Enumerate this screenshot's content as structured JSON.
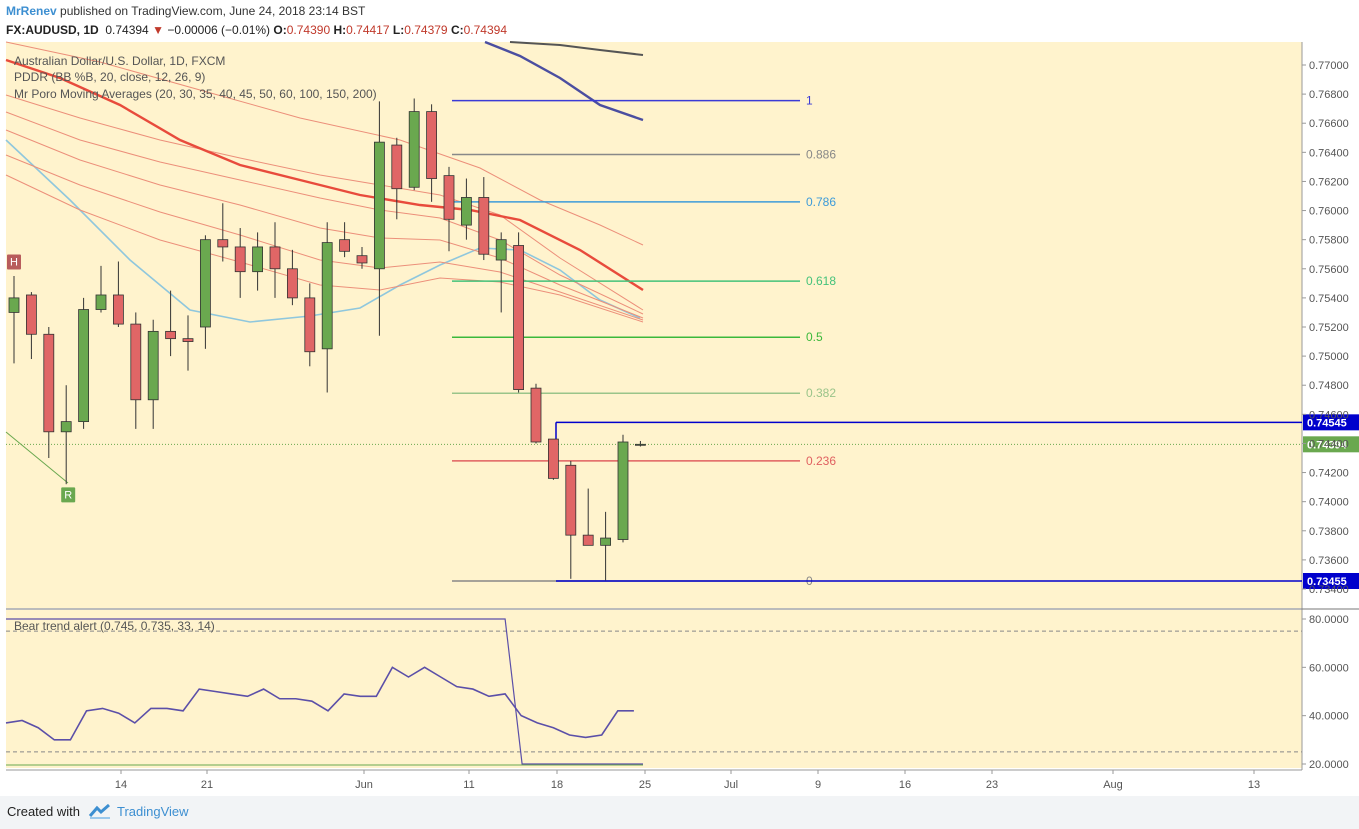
{
  "header": {
    "author": "MrRenev",
    "published_text": "published on TradingView.com, June 24, 2018 23:14 BST",
    "symbol_line": "FX:AUDUSD, 1D",
    "last": "0.74394",
    "arrow": "▼",
    "change": "−0.00006 (−0.01%)",
    "o_label": "O:",
    "o": "0.74390",
    "h_label": "H:",
    "h": "0.74417",
    "l_label": "L:",
    "l": "0.74379",
    "c_label": "C:",
    "c": "0.74394"
  },
  "legend": {
    "line1": "Australian Dollar/U.S. Dollar, 1D, FXCM",
    "line2": "PDDR (BB %B, 20, close, 12, 26, 9)",
    "line3": "Mr Poro Moving Averages (20, 30, 35, 40, 45, 50, 60, 100, 150, 200)"
  },
  "footer": {
    "created_with": "Created with",
    "brand": "TradingView"
  },
  "colors": {
    "background": "#fff3cd",
    "bull": "#6aa84f",
    "bear": "#e06666",
    "price_line_blue": "#0000cc",
    "last_price_badge": "#6aa84f",
    "oscillator": "#5b4fa8"
  },
  "chart_data": [
    {
      "type": "candlestick",
      "ylim": [
        0.733,
        0.772
      ],
      "y_ticks": [
        "0.77000",
        "0.76800",
        "0.76600",
        "0.76400",
        "0.76200",
        "0.76000",
        "0.75800",
        "0.75600",
        "0.75400",
        "0.75200",
        "0.75000",
        "0.74800",
        "0.74600",
        "0.74400",
        "0.74200",
        "0.74000",
        "0.73800",
        "0.73600",
        "0.73400"
      ],
      "x_ticks": [
        "14",
        "21",
        "Jun",
        "11",
        "18",
        "25",
        "Jul",
        "9",
        "16",
        "23",
        "Aug",
        "13"
      ],
      "candles": [
        {
          "o": 0.753,
          "h": 0.7555,
          "l": 0.7495,
          "c": 0.754
        },
        {
          "o": 0.7542,
          "h": 0.7544,
          "l": 0.7498,
          "c": 0.7515
        },
        {
          "o": 0.7515,
          "h": 0.752,
          "l": 0.743,
          "c": 0.7448
        },
        {
          "o": 0.7448,
          "h": 0.748,
          "l": 0.7412,
          "c": 0.7455
        },
        {
          "o": 0.7455,
          "h": 0.754,
          "l": 0.745,
          "c": 0.7532
        },
        {
          "o": 0.7532,
          "h": 0.7562,
          "l": 0.753,
          "c": 0.7542
        },
        {
          "o": 0.7542,
          "h": 0.7565,
          "l": 0.752,
          "c": 0.7522
        },
        {
          "o": 0.7522,
          "h": 0.753,
          "l": 0.745,
          "c": 0.747
        },
        {
          "o": 0.747,
          "h": 0.7525,
          "l": 0.745,
          "c": 0.7517
        },
        {
          "o": 0.7517,
          "h": 0.7545,
          "l": 0.75,
          "c": 0.7512
        },
        {
          "o": 0.7512,
          "h": 0.7528,
          "l": 0.749,
          "c": 0.751
        },
        {
          "o": 0.752,
          "h": 0.7583,
          "l": 0.7505,
          "c": 0.758
        },
        {
          "o": 0.758,
          "h": 0.7605,
          "l": 0.7565,
          "c": 0.7575
        },
        {
          "o": 0.7575,
          "h": 0.7588,
          "l": 0.754,
          "c": 0.7558
        },
        {
          "o": 0.7558,
          "h": 0.7585,
          "l": 0.7545,
          "c": 0.7575
        },
        {
          "o": 0.7575,
          "h": 0.7592,
          "l": 0.754,
          "c": 0.756
        },
        {
          "o": 0.756,
          "h": 0.7573,
          "l": 0.7535,
          "c": 0.754
        },
        {
          "o": 0.754,
          "h": 0.755,
          "l": 0.7493,
          "c": 0.7503
        },
        {
          "o": 0.7505,
          "h": 0.7592,
          "l": 0.7475,
          "c": 0.7578
        },
        {
          "o": 0.758,
          "h": 0.7592,
          "l": 0.7568,
          "c": 0.7572
        },
        {
          "o": 0.7569,
          "h": 0.7575,
          "l": 0.756,
          "c": 0.7564
        },
        {
          "o": 0.756,
          "h": 0.7675,
          "l": 0.7514,
          "c": 0.7647
        },
        {
          "o": 0.7645,
          "h": 0.765,
          "l": 0.7594,
          "c": 0.7615
        },
        {
          "o": 0.7616,
          "h": 0.7677,
          "l": 0.7614,
          "c": 0.7668
        },
        {
          "o": 0.7668,
          "h": 0.7673,
          "l": 0.7606,
          "c": 0.7622
        },
        {
          "o": 0.7624,
          "h": 0.763,
          "l": 0.7572,
          "c": 0.7594
        },
        {
          "o": 0.759,
          "h": 0.7622,
          "l": 0.758,
          "c": 0.7609
        },
        {
          "o": 0.7609,
          "h": 0.7623,
          "l": 0.7566,
          "c": 0.757
        },
        {
          "o": 0.7566,
          "h": 0.7585,
          "l": 0.753,
          "c": 0.758
        },
        {
          "o": 0.7576,
          "h": 0.7585,
          "l": 0.7475,
          "c": 0.7477
        },
        {
          "o": 0.7478,
          "h": 0.7481,
          "l": 0.744,
          "c": 0.7441
        },
        {
          "o": 0.7443,
          "h": 0.7443,
          "l": 0.7415,
          "c": 0.7416
        },
        {
          "o": 0.7425,
          "h": 0.7428,
          "l": 0.7347,
          "c": 0.7377
        },
        {
          "o": 0.7377,
          "h": 0.7409,
          "l": 0.737,
          "c": 0.737
        },
        {
          "o": 0.737,
          "h": 0.7393,
          "l": 0.7346,
          "c": 0.7375
        },
        {
          "o": 0.7374,
          "h": 0.7446,
          "l": 0.7372,
          "c": 0.7441
        },
        {
          "o": 0.7439,
          "h": 0.74417,
          "l": 0.74379,
          "c": 0.74394
        }
      ],
      "fibonacci": [
        {
          "ratio": "1",
          "price": 0.76755,
          "color": "#3b3bd6"
        },
        {
          "ratio": "0.886",
          "price": 0.76385,
          "color": "#888888"
        },
        {
          "ratio": "0.786",
          "price": 0.7606,
          "color": "#3d9bd9"
        },
        {
          "ratio": "0.618",
          "price": 0.75515,
          "color": "#43c27a"
        },
        {
          "ratio": "0.5",
          "price": 0.7513,
          "color": "#3bb83b"
        },
        {
          "ratio": "0.382",
          "price": 0.74745,
          "color": "#9ac48a"
        },
        {
          "ratio": "0.236",
          "price": 0.7428,
          "color": "#e06060"
        },
        {
          "ratio": "0",
          "price": 0.73455,
          "color": "#888888"
        }
      ],
      "horizontal_levels": [
        {
          "label": "0.74545",
          "price": 0.74545,
          "color": "#0000cc"
        },
        {
          "label": "0.73455",
          "price": 0.73455,
          "color": "#0000cc"
        }
      ],
      "last_price_label": "0.74394",
      "markers": [
        {
          "text": "H",
          "candle_index": 0,
          "price": 0.7565,
          "color": "#b85c5c"
        },
        {
          "text": "R",
          "candle_index": 3,
          "price": 0.7405,
          "color": "#6aa84f"
        }
      ]
    },
    {
      "type": "line",
      "title": "Bear trend alert (0.745, 0.735, 33, 14)",
      "ylim": [
        18,
        82
      ],
      "y_ticks": [
        "80.0000",
        "60.0000",
        "40.0000",
        "20.0000"
      ],
      "dashed_levels": [
        75,
        25
      ],
      "series": [
        {
          "values": [
            37,
            38,
            35,
            30,
            30,
            42,
            43,
            41,
            37,
            43,
            43,
            42,
            51,
            50,
            49,
            48,
            51,
            47,
            47,
            46,
            42,
            49,
            48,
            48,
            60,
            56,
            60,
            56,
            52,
            51,
            48,
            49,
            40,
            37,
            35,
            32,
            31,
            32,
            42,
            42
          ]
        }
      ],
      "step_series": {
        "from": 80,
        "to": 20,
        "drop_index": 31
      }
    }
  ]
}
